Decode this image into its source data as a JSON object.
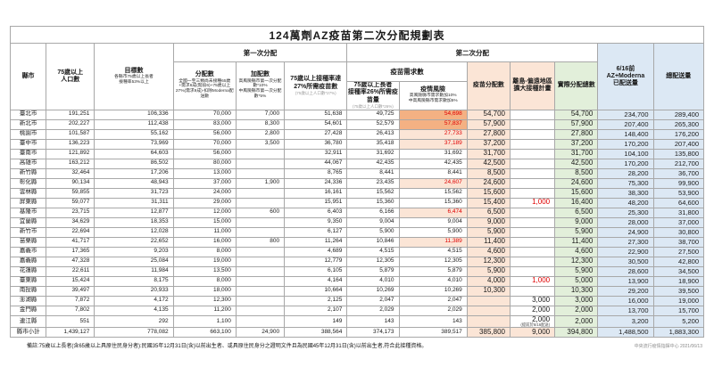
{
  "title": "124萬劑AZ疫苗第二次分配規劃表",
  "headers": {
    "county": "縣市",
    "population": "75歲以上\n人口數",
    "target": {
      "main": "目標數",
      "sub": "各縣市75歲以上長者\n接種率53%以上"
    },
    "first_dist": "第一次分配",
    "second_dist": "第二次分配",
    "alloc1": {
      "main": "分配數",
      "sub": "全國一至三類尚未接種65歲+需求6成(階段6)+75歲以上27%(需求9成)-扣除Moderna配送數"
    },
    "extra1": {
      "main": "加配數",
      "sub": "高風險縣市第一次分配數*10%\n中風險縣市第一次分配數*5%"
    },
    "need27": {
      "main": "75歲以上接種率達\n27%所需疫苗數",
      "sub": "(75歲以上人口數*27%)"
    },
    "demand": "疫苗需求數",
    "need26": {
      "main": "75歲以上長者\n接種率26%所需疫苗量",
      "sub": "(75歲以上人口數*26%)"
    },
    "risk": {
      "main": "疫情風險",
      "sub": "高風險縣市需求數加10%\n中高風險縣市需求數加5%"
    },
    "alloc2": "疫苗分配數",
    "island": "離島-偏遠地區\n擴大接種計畫",
    "actual": "實際分配總數",
    "delivered": "6/16前\nAZ+Moderna\n已配送量",
    "total": "總配送量"
  },
  "rows": [
    {
      "name": "臺北市",
      "pop": "191,251",
      "target": "106,336",
      "alloc1": "70,000",
      "extra1": "7,000",
      "need27": "51,638",
      "need26": "49,725",
      "risk": "54,698",
      "risk_level": "high",
      "alloc2": "54,700",
      "island": "",
      "actual": "54,700",
      "delivered": "234,700",
      "total": "289,400"
    },
    {
      "name": "新北市",
      "pop": "202,227",
      "target": "112,438",
      "alloc1": "83,000",
      "extra1": "8,300",
      "need27": "54,601",
      "need26": "52,579",
      "risk": "57,837",
      "risk_level": "high",
      "alloc2": "57,900",
      "island": "",
      "actual": "57,900",
      "delivered": "207,400",
      "total": "265,300"
    },
    {
      "name": "桃園市",
      "pop": "101,587",
      "target": "55,162",
      "alloc1": "56,000",
      "extra1": "2,800",
      "need27": "27,428",
      "need26": "26,413",
      "risk": "27,733",
      "risk_level": "mid",
      "alloc2": "27,800",
      "island": "",
      "actual": "27,800",
      "delivered": "148,400",
      "total": "176,200"
    },
    {
      "name": "臺中市",
      "pop": "136,223",
      "target": "73,969",
      "alloc1": "70,000",
      "extra1": "3,500",
      "need27": "36,780",
      "need26": "35,418",
      "risk": "37,189",
      "risk_level": "mid",
      "alloc2": "37,200",
      "island": "",
      "actual": "37,200",
      "delivered": "170,200",
      "total": "207,400"
    },
    {
      "name": "臺南市",
      "pop": "121,892",
      "target": "64,603",
      "alloc1": "56,000",
      "extra1": "",
      "need27": "32,911",
      "need26": "31,692",
      "risk": "31,692",
      "risk_level": "none",
      "alloc2": "31,700",
      "island": "",
      "actual": "31,700",
      "delivered": "104,100",
      "total": "135,800"
    },
    {
      "name": "高雄市",
      "pop": "163,212",
      "target": "86,502",
      "alloc1": "80,000",
      "extra1": "",
      "need27": "44,067",
      "need26": "42,435",
      "risk": "42,435",
      "risk_level": "none",
      "alloc2": "42,500",
      "island": "",
      "actual": "42,500",
      "delivered": "170,200",
      "total": "212,700"
    },
    {
      "name": "新竹縣",
      "pop": "32,464",
      "target": "17,206",
      "alloc1": "13,000",
      "extra1": "",
      "need27": "8,765",
      "need26": "8,441",
      "risk": "8,441",
      "risk_level": "none",
      "alloc2": "8,500",
      "island": "",
      "actual": "8,500",
      "delivered": "28,200",
      "total": "36,700"
    },
    {
      "name": "彰化縣",
      "pop": "90,134",
      "target": "48,943",
      "alloc1": "37,000",
      "extra1": "1,900",
      "need27": "24,336",
      "need26": "23,435",
      "risk": "24,607",
      "risk_level": "mid",
      "alloc2": "24,600",
      "island": "",
      "actual": "24,600",
      "delivered": "75,300",
      "total": "99,900"
    },
    {
      "name": "雲林縣",
      "pop": "59,855",
      "target": "31,723",
      "alloc1": "24,000",
      "extra1": "",
      "need27": "16,161",
      "need26": "15,562",
      "risk": "15,562",
      "risk_level": "none",
      "alloc2": "15,600",
      "island": "",
      "actual": "15,600",
      "delivered": "38,300",
      "total": "53,900"
    },
    {
      "name": "屏東縣",
      "pop": "59,077",
      "target": "31,311",
      "alloc1": "29,000",
      "extra1": "",
      "need27": "15,951",
      "need26": "15,360",
      "risk": "15,360",
      "risk_level": "none",
      "alloc2": "15,400",
      "island": "1,000",
      "island_red": true,
      "actual": "16,400",
      "delivered": "48,200",
      "total": "64,600"
    },
    {
      "name": "基隆市",
      "pop": "23,715",
      "target": "12,877",
      "alloc1": "12,000",
      "extra1": "600",
      "need27": "6,403",
      "need26": "6,166",
      "risk": "6,474",
      "risk_level": "mid",
      "alloc2": "6,500",
      "island": "",
      "actual": "6,500",
      "delivered": "25,300",
      "total": "31,800"
    },
    {
      "name": "宜蘭縣",
      "pop": "34,629",
      "target": "18,353",
      "alloc1": "15,000",
      "extra1": "",
      "need27": "9,350",
      "need26": "9,004",
      "risk": "9,004",
      "risk_level": "none",
      "alloc2": "9,000",
      "island": "",
      "actual": "9,000",
      "delivered": "28,000",
      "total": "37,000"
    },
    {
      "name": "新竹市",
      "pop": "22,694",
      "target": "12,028",
      "alloc1": "11,000",
      "extra1": "",
      "need27": "6,127",
      "need26": "5,900",
      "risk": "5,900",
      "risk_level": "none",
      "alloc2": "5,900",
      "island": "",
      "actual": "5,900",
      "delivered": "24,900",
      "total": "30,800"
    },
    {
      "name": "苗栗縣",
      "pop": "41,717",
      "target": "22,652",
      "alloc1": "16,000",
      "extra1": "800",
      "need27": "11,264",
      "need26": "10,846",
      "risk": "11,389",
      "risk_level": "mid",
      "alloc2": "11,400",
      "island": "",
      "actual": "11,400",
      "delivered": "27,300",
      "total": "38,700"
    },
    {
      "name": "嘉義市",
      "pop": "17,365",
      "target": "9,203",
      "alloc1": "8,000",
      "extra1": "",
      "need27": "4,689",
      "need26": "4,515",
      "risk": "4,515",
      "risk_level": "none",
      "alloc2": "4,600",
      "island": "",
      "actual": "4,600",
      "delivered": "22,900",
      "total": "27,500"
    },
    {
      "name": "嘉義縣",
      "pop": "47,328",
      "target": "25,084",
      "alloc1": "19,000",
      "extra1": "",
      "need27": "12,779",
      "need26": "12,305",
      "risk": "12,305",
      "risk_level": "none",
      "alloc2": "12,300",
      "island": "",
      "actual": "12,300",
      "delivered": "30,500",
      "total": "42,800"
    },
    {
      "name": "花蓮縣",
      "pop": "22,611",
      "target": "11,984",
      "alloc1": "13,500",
      "extra1": "",
      "need27": "6,105",
      "need26": "5,879",
      "risk": "5,879",
      "risk_level": "none",
      "alloc2": "5,900",
      "island": "",
      "actual": "5,900",
      "delivered": "28,600",
      "total": "34,500"
    },
    {
      "name": "臺東縣",
      "pop": "15,424",
      "target": "8,175",
      "alloc1": "8,000",
      "extra1": "",
      "need27": "4,164",
      "need26": "4,010",
      "risk": "4,010",
      "risk_level": "none",
      "alloc2": "4,000",
      "island": "1,000",
      "island_red": true,
      "actual": "5,000",
      "delivered": "13,900",
      "total": "18,900"
    },
    {
      "name": "南投縣",
      "pop": "39,497",
      "target": "20,933",
      "alloc1": "18,000",
      "extra1": "",
      "need27": "10,664",
      "need26": "10,269",
      "risk": "10,269",
      "risk_level": "none",
      "alloc2": "10,300",
      "island": "",
      "actual": "10,300",
      "delivered": "29,200",
      "total": "39,500"
    },
    {
      "name": "澎湖縣",
      "pop": "7,872",
      "target": "4,172",
      "alloc1": "12,300",
      "extra1": "",
      "need27": "2,125",
      "need26": "2,047",
      "risk": "2,047",
      "risk_level": "none",
      "alloc2": "",
      "island": "3,000",
      "actual": "3,000",
      "delivered": "16,000",
      "total": "19,000"
    },
    {
      "name": "金門縣",
      "pop": "7,802",
      "target": "4,135",
      "alloc1": "11,200",
      "extra1": "",
      "need27": "2,107",
      "need26": "2,029",
      "risk": "2,029",
      "risk_level": "none",
      "alloc2": "",
      "island": "2,000",
      "actual": "2,000",
      "delivered": "13,700",
      "total": "15,700"
    },
    {
      "name": "連江縣",
      "pop": "551",
      "target": "292",
      "alloc1": "1,100",
      "extra1": "",
      "need27": "149",
      "need26": "143",
      "risk": "143",
      "risk_level": "none",
      "alloc2": "",
      "island": "2,000",
      "island_note": "(提前於6/16配送)",
      "actual": "2,000",
      "delivered": "3,200",
      "total": "5,200"
    }
  ],
  "subtotal": {
    "name": "縣市小計",
    "pop": "1,439,127",
    "target": "778,082",
    "alloc1": "663,100",
    "extra1": "24,900",
    "need27": "388,564",
    "need26": "374,173",
    "risk": "389,517",
    "risk_level": "none",
    "alloc2": "385,800",
    "island": "9,000",
    "actual": "394,800",
    "delivered": "1,488,500",
    "total": "1,883,300"
  },
  "footnote": "備註:75歲以上長者(含65歲以上具原住民身分者):民國35年12月31日(含)以前出生者、或具原住民身分之證明文件且為民國45年12月31日(含)以前出生者,符合此接種資格。",
  "source": "中央流行疫情指揮中心 2021/06/13",
  "colors": {
    "highlight_high_risk": "#f4b183",
    "highlight_mid_risk": "#fbe5d6",
    "column_allocation": "#fbe5d6",
    "column_actual_total": "#e2efda",
    "column_delivered": "#dce8f4",
    "alert_red": "#e00000"
  }
}
